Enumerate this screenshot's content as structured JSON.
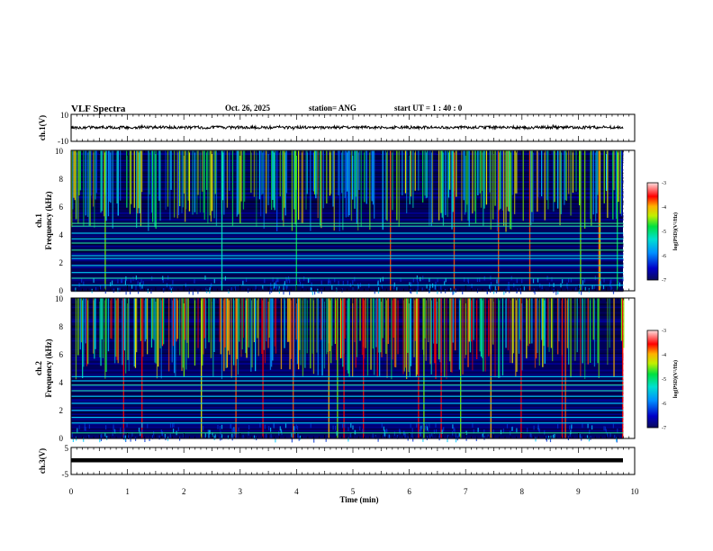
{
  "header": {
    "title": "VLF Spectra",
    "date": "Oct. 26, 2025",
    "station": "station= ANG",
    "start_ut": "start UT =   1 : 40 : 0"
  },
  "chart_data": [
    {
      "type": "line",
      "name": "ch.1 waveform",
      "ylabel": "ch.1(V)",
      "ylim": [
        -10,
        10
      ],
      "yticks": [
        "10",
        "-10"
      ],
      "baseline": 0,
      "xlim": [
        0,
        10
      ],
      "x_end": 9.8
    },
    {
      "type": "heatmap",
      "name": "ch.1 spectrogram",
      "ylabel_top": "ch.1",
      "ylabel": "Frequency (kHz)",
      "ylim": [
        0,
        10
      ],
      "yticks": [
        "0",
        "2",
        "4",
        "6",
        "8",
        "10"
      ],
      "xlim": [
        0,
        10
      ],
      "x_end": 9.8,
      "colorbar": {
        "label": "log(PSD)(V²/Hz)",
        "range": [
          -7,
          -3
        ],
        "ticks": [
          "-3",
          "-4",
          "-5",
          "-6",
          "-7"
        ]
      },
      "lines_khz": [
        0.4,
        0.9,
        1.3,
        1.8,
        2.3,
        2.5,
        2.9,
        3.4,
        3.7,
        4.1,
        4.6,
        4.8
      ]
    },
    {
      "type": "heatmap",
      "name": "ch.2 spectrogram",
      "ylabel_top": "ch.2",
      "ylabel": "Frequency (kHz)",
      "ylim": [
        0,
        10
      ],
      "yticks": [
        "0",
        "2",
        "4",
        "6",
        "8",
        "10"
      ],
      "xlim": [
        0,
        10
      ],
      "x_end": 9.8,
      "colorbar": {
        "label": "log(PSD)(V²/Hz)",
        "range": [
          -7,
          -3
        ],
        "ticks": [
          "-3",
          "-4",
          "-5",
          "-6",
          "-7"
        ]
      },
      "lines_khz": [
        0.4,
        1.1,
        1.5,
        2.0,
        2.5,
        3.0,
        3.4,
        3.8,
        4.1,
        4.4
      ]
    },
    {
      "type": "line",
      "name": "ch.3 waveform",
      "ylabel": "ch.3(V)",
      "ylim": [
        -5,
        5
      ],
      "yticks": [
        "5",
        "-5"
      ],
      "baseline": 0,
      "xlim": [
        0,
        10
      ],
      "x_end": 9.8
    }
  ],
  "xaxis": {
    "label": "Time (min)",
    "ticks": [
      "0",
      "1",
      "2",
      "3",
      "4",
      "5",
      "6",
      "7",
      "8",
      "9",
      "10"
    ]
  },
  "colors": {
    "low": "#000066",
    "mid": "#00e0a0",
    "high": "#ff0000",
    "axis": "#000000"
  }
}
